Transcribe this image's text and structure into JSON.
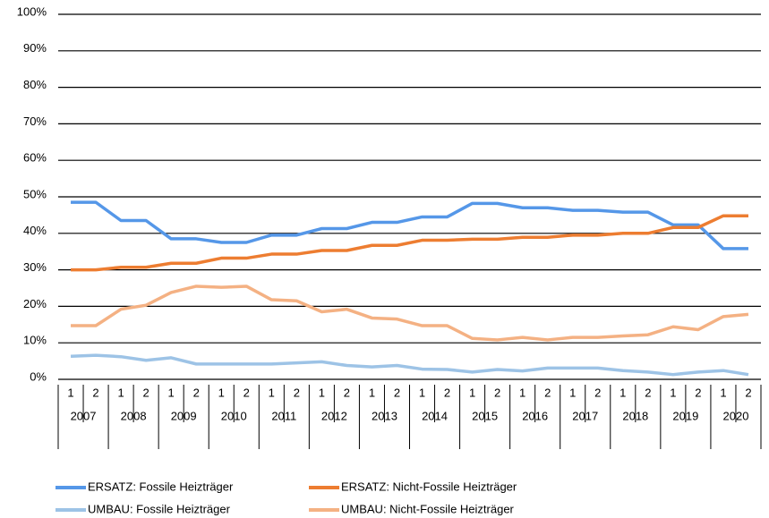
{
  "chart_data": {
    "type": "line",
    "categories": [
      "1",
      "2",
      "1",
      "2",
      "1",
      "2",
      "1",
      "2",
      "1",
      "2",
      "1",
      "2",
      "1",
      "2",
      "1",
      "2",
      "1",
      "2",
      "1",
      "2",
      "1",
      "2",
      "1",
      "2",
      "1",
      "2",
      "1",
      "2"
    ],
    "groups": [
      "2007",
      "2008",
      "2009",
      "2010",
      "2011",
      "2012",
      "2013",
      "2014",
      "2015",
      "2016",
      "2017",
      "2018",
      "2019",
      "2020"
    ],
    "ylim": [
      0,
      100
    ],
    "yticks": [
      {
        "value": 0,
        "label": "0%"
      },
      {
        "value": 10,
        "label": "10%"
      },
      {
        "value": 20,
        "label": "20%"
      },
      {
        "value": 30,
        "label": "30%"
      },
      {
        "value": 40,
        "label": "40%"
      },
      {
        "value": 50,
        "label": "50%"
      },
      {
        "value": 60,
        "label": "60%"
      },
      {
        "value": 70,
        "label": "70%"
      },
      {
        "value": 80,
        "label": "80%"
      },
      {
        "value": 90,
        "label": "90%"
      },
      {
        "value": 100,
        "label": "100%"
      }
    ],
    "grid": true,
    "legend": "bottom",
    "series": [
      {
        "name": "ERSATZ: Fossile Heizträger",
        "color": "#5597e8",
        "values": [
          48.5,
          48.5,
          43.5,
          43.5,
          38.5,
          38.5,
          37.5,
          37.5,
          39.5,
          39.5,
          41.3,
          41.3,
          43,
          43,
          44.5,
          44.5,
          48.2,
          48.2,
          47,
          47,
          46.3,
          46.3,
          45.8,
          45.8,
          42.3,
          42.3,
          35.8,
          35.8
        ]
      },
      {
        "name": "ERSATZ: Nicht-Fossile Heizträger",
        "color": "#ed7d31",
        "values": [
          30,
          30,
          30.7,
          30.7,
          31.8,
          31.8,
          33.2,
          33.2,
          34.3,
          34.3,
          35.3,
          35.3,
          36.7,
          36.7,
          38.1,
          38.1,
          38.4,
          38.4,
          38.9,
          38.9,
          39.5,
          39.5,
          40,
          40,
          41.6,
          41.6,
          44.8,
          44.8
        ]
      },
      {
        "name": "UMBAU: Fossile Heizträger",
        "color": "#9dc3e6",
        "values": [
          6.3,
          6.6,
          6.2,
          5.2,
          5.9,
          4.2,
          4.2,
          4.2,
          4.2,
          4.5,
          4.8,
          3.8,
          3.4,
          3.8,
          2.8,
          2.7,
          2.0,
          2.7,
          2.3,
          3.1,
          3.1,
          3.1,
          2.4,
          2.0,
          1.3,
          2.0,
          2.4,
          1.3
        ]
      },
      {
        "name": "UMBAU: Nicht-Fossile Heizträger",
        "color": "#f4b183",
        "values": [
          14.7,
          14.7,
          19.2,
          20.3,
          23.8,
          25.5,
          25.2,
          25.5,
          21.8,
          21.5,
          18.5,
          19.2,
          16.8,
          16.5,
          14.7,
          14.7,
          11.2,
          10.8,
          11.5,
          10.8,
          11.5,
          11.5,
          11.9,
          12.2,
          14.4,
          13.6,
          17.2,
          17.8
        ]
      }
    ]
  }
}
